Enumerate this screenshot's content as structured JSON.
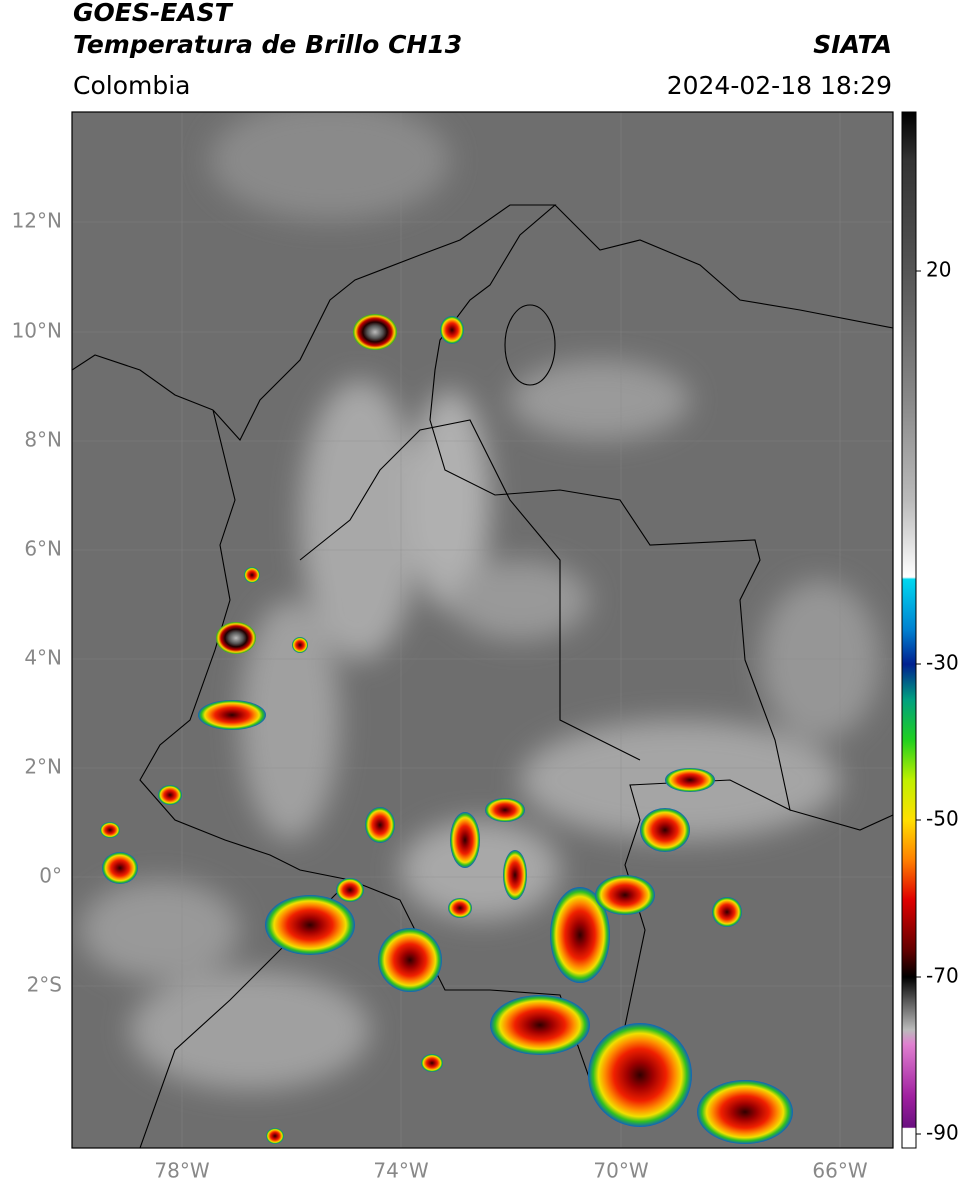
{
  "header": {
    "title_line_1": "GOES-EAST",
    "title_line_2": "Temperatura de Brillo CH13",
    "region": "Colombia",
    "source": "SIATA",
    "timestamp": "2024-02-18 18:29"
  },
  "map": {
    "lat_labels": [
      "12°N",
      "10°N",
      "8°N",
      "6°N",
      "4°N",
      "2°N",
      "0°",
      "2°S"
    ],
    "lon_labels": [
      "78°W",
      "74°W",
      "70°W",
      "66°W"
    ]
  },
  "colorbar": {
    "tick_labels": [
      "20",
      "-30",
      "-50",
      "-70",
      "-90"
    ]
  }
}
